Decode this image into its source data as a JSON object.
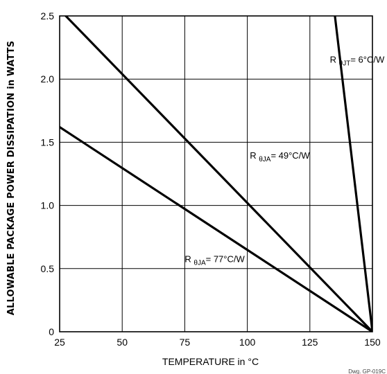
{
  "chart_data": {
    "type": "line",
    "title": "",
    "xlabel": "TEMPERATURE in °C",
    "ylabel": "ALLOWABLE PACKAGE POWER DISSIPATION in WATTS",
    "xlim": [
      25,
      150
    ],
    "ylim": [
      0,
      2.5
    ],
    "x_ticks": [
      "25",
      "50",
      "75",
      "100",
      "125",
      "150"
    ],
    "y_ticks": [
      "0",
      "0.5",
      "1.0",
      "1.5",
      "2.0",
      "2.5"
    ],
    "grid": true,
    "series": [
      {
        "points": [
          [
            25,
            1.62
          ],
          [
            150,
            0
          ]
        ]
      },
      {
        "points": [
          [
            25,
            2.55
          ],
          [
            150,
            0
          ]
        ]
      },
      {
        "points": [
          [
            133.5,
            2.75
          ],
          [
            150,
            0
          ]
        ]
      }
    ],
    "annotations": [
      {
        "prefix": "R",
        "sub": "θJT",
        "suffix": "= 6°C/W",
        "x": 133,
        "y": 2.13
      },
      {
        "prefix": "R",
        "sub": "θJA",
        "suffix": "= 49°C/W",
        "x": 101,
        "y": 1.37
      },
      {
        "prefix": "R",
        "sub": "θJA",
        "suffix": "= 77°C/W",
        "x": 75,
        "y": 0.55
      }
    ],
    "footnote": "Dwg. GP-019C"
  }
}
